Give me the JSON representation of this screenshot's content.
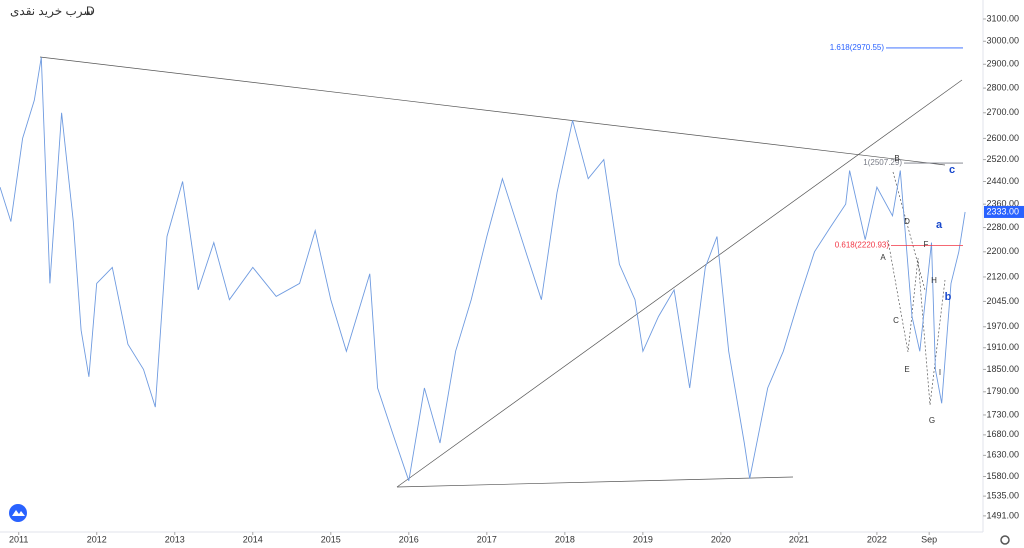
{
  "chart_data": {
    "type": "line",
    "title": "سرب خرید نقدی",
    "interval": "D",
    "log_scale": true,
    "x": [
      2010.76,
      2010.9,
      2011.05,
      2011.2,
      2011.29,
      2011.4,
      2011.55,
      2011.7,
      2011.8,
      2011.9,
      2012.0,
      2012.2,
      2012.4,
      2012.6,
      2012.75,
      2012.9,
      2013.1,
      2013.3,
      2013.5,
      2013.7,
      2014.0,
      2014.3,
      2014.6,
      2014.8,
      2015.0,
      2015.2,
      2015.5,
      2015.6,
      2015.8,
      2016.0,
      2016.2,
      2016.4,
      2016.6,
      2016.8,
      2017.0,
      2017.2,
      2017.5,
      2017.7,
      2017.9,
      2018.1,
      2018.3,
      2018.5,
      2018.7,
      2018.9,
      2019.0,
      2019.2,
      2019.4,
      2019.6,
      2019.8,
      2019.95,
      2020.1,
      2020.3,
      2020.37,
      2020.6,
      2020.8,
      2021.0,
      2021.2,
      2021.4,
      2021.6,
      2021.65,
      2021.85,
      2022.0,
      2022.2,
      2022.3,
      2022.45,
      2022.55,
      2022.7,
      2022.75,
      2022.83,
      2022.95,
      2023.05,
      2023.13
    ],
    "series": [
      {
        "name": "سرب خرید نقدی",
        "color": "#6f9be0",
        "values": [
          2420,
          2300,
          2600,
          2750,
          2930,
          2100,
          2700,
          2300,
          1960,
          1830,
          2100,
          2150,
          1920,
          1850,
          1750,
          2250,
          2440,
          2080,
          2230,
          2050,
          2150,
          2060,
          2100,
          2270,
          2050,
          1900,
          2130,
          1800,
          1680,
          1570,
          1800,
          1660,
          1900,
          2050,
          2250,
          2450,
          2200,
          2050,
          2400,
          2670,
          2450,
          2520,
          2160,
          2050,
          1900,
          2000,
          2080,
          1800,
          2150,
          2250,
          1900,
          1660,
          1575,
          1800,
          1900,
          2050,
          2200,
          2280,
          2360,
          2480,
          2240,
          2420,
          2320,
          2480,
          2000,
          1900,
          2230,
          1850,
          1760,
          2100,
          2200,
          2333
        ]
      }
    ],
    "xlim": [
      2010.76,
      2023.36
    ],
    "xticks": [
      2011,
      2012,
      2013,
      2014,
      2015,
      2016,
      2017,
      2018,
      2019,
      2020,
      2021,
      2022,
      {
        "value": 2022.67,
        "label": "Sep"
      }
    ],
    "ylim": [
      1456,
      3188
    ],
    "yticks": [
      {
        "value": 1491,
        "label": "1491.00"
      },
      {
        "value": 1535,
        "label": "1535.00"
      },
      {
        "value": 1580,
        "label": "1580.00"
      },
      {
        "value": 1630,
        "label": "1630.00"
      },
      {
        "value": 1680,
        "label": "1680.00"
      },
      {
        "value": 1730,
        "label": "1730.00"
      },
      {
        "value": 1790,
        "label": "1790.00"
      },
      {
        "value": 1850,
        "label": "1850.00"
      },
      {
        "value": 1910,
        "label": "1910.00"
      },
      {
        "value": 1970,
        "label": "1970.00"
      },
      {
        "value": 2045,
        "label": "2045.00"
      },
      {
        "value": 2120,
        "label": "2120.00"
      },
      {
        "value": 2200,
        "label": "2200.00"
      },
      {
        "value": 2280,
        "label": "2280.00"
      },
      {
        "value": 2360,
        "label": "2360.00"
      },
      {
        "value": 2440,
        "label": "2440.00"
      },
      {
        "value": 2520,
        "label": "2520.00"
      },
      {
        "value": 2600,
        "label": "2600.00"
      },
      {
        "value": 2700,
        "label": "2700.00"
      },
      {
        "value": 2800,
        "label": "2800.00"
      },
      {
        "value": 2900,
        "label": "2900.00"
      },
      {
        "value": 3000,
        "label": "3000.00"
      },
      {
        "value": 3100,
        "label": "3100.00"
      }
    ],
    "last_price": {
      "value": 2333,
      "label": "2333.00",
      "color": "#2962ff"
    },
    "fib_levels": [
      {
        "value": 2970.55,
        "label": "1.618(2970.55)",
        "color": "#2962ff"
      },
      {
        "value": 2220.93,
        "label": "0.618(2220.93)",
        "color": "#f23645"
      },
      {
        "value": 2507.29,
        "label": "1(2507.29)",
        "color": "#787b86"
      }
    ],
    "wave_labels": [
      "c",
      "a",
      "b",
      "B",
      "D",
      "A",
      "F",
      "H",
      "C",
      "E",
      "I",
      "G"
    ]
  }
}
